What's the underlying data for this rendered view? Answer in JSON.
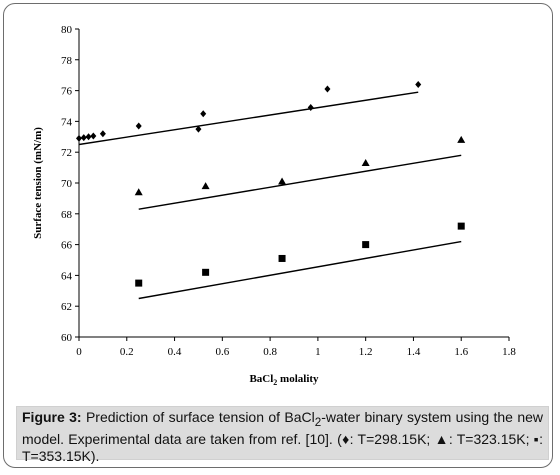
{
  "chart_data": {
    "type": "scatter",
    "xlabel_main": "BaCl",
    "xlabel_sub": "2",
    "xlabel_rest": " molality",
    "ylabel": "Surface tension (mN/m)",
    "xlim": [
      0,
      1.8
    ],
    "ylim": [
      60,
      80
    ],
    "xticks": [
      "0",
      "0.2",
      "0.4",
      "0.6",
      "0.8",
      "1",
      "1.2",
      "1.4",
      "1.6",
      "1.8"
    ],
    "yticks": [
      "60",
      "62",
      "64",
      "66",
      "68",
      "70",
      "72",
      "74",
      "76",
      "78",
      "80"
    ],
    "grid": false,
    "series": [
      {
        "marker": "diamond",
        "points": [
          [
            0.0,
            72.9
          ],
          [
            0.02,
            72.95
          ],
          [
            0.04,
            73.0
          ],
          [
            0.06,
            73.05
          ],
          [
            0.1,
            73.2
          ],
          [
            0.25,
            73.7
          ],
          [
            0.5,
            73.5
          ],
          [
            0.52,
            74.5
          ],
          [
            0.97,
            74.9
          ],
          [
            1.04,
            76.1
          ],
          [
            1.42,
            76.4
          ]
        ],
        "model": [
          [
            0.0,
            72.5
          ],
          [
            1.42,
            75.9
          ]
        ]
      },
      {
        "marker": "triangle",
        "points": [
          [
            0.25,
            69.4
          ],
          [
            0.53,
            69.8
          ],
          [
            0.85,
            70.1
          ],
          [
            1.2,
            71.3
          ],
          [
            1.6,
            72.8
          ]
        ],
        "model": [
          [
            0.25,
            68.3
          ],
          [
            1.6,
            71.8
          ]
        ]
      },
      {
        "marker": "square",
        "points": [
          [
            0.25,
            63.5
          ],
          [
            0.53,
            64.2
          ],
          [
            0.85,
            65.1
          ],
          [
            1.2,
            66.0
          ],
          [
            1.6,
            67.2
          ]
        ],
        "model": [
          [
            0.25,
            62.5
          ],
          [
            1.6,
            66.2
          ]
        ]
      }
    ]
  },
  "caption": {
    "label": "Figure 3:",
    "text_1": " Prediction of surface tension of BaCl",
    "sub": "2",
    "text_2": "-water binary system using the new model. Experimental data are taken from ref. [10]. (♦: T=298.15K; ▲: T=323.15K; ▪: T=353.15K)."
  }
}
